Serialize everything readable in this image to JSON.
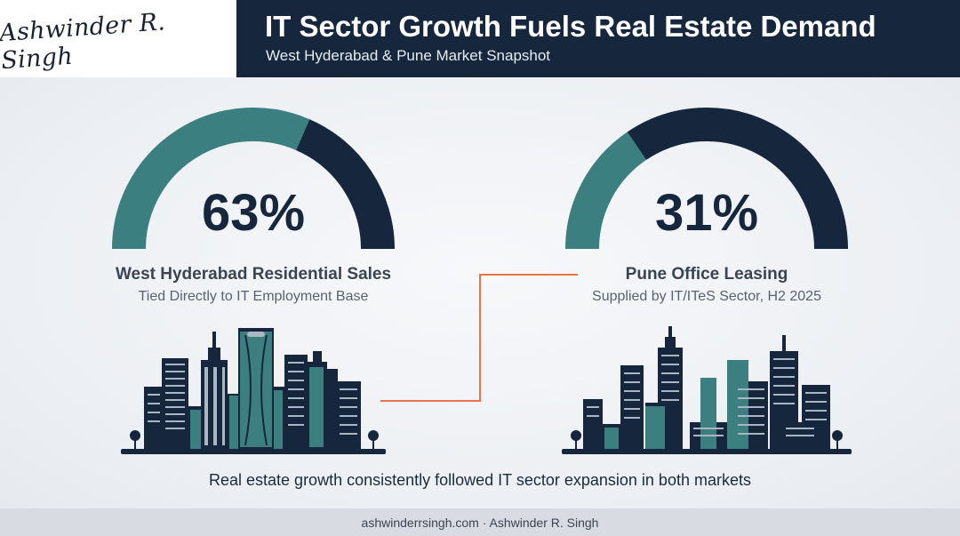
{
  "header": {
    "logo_text": "Ashwinder R. Singh",
    "title": "IT Sector Growth Fuels Real Estate Demand",
    "subtitle": "West Hyderabad & Pune Market Snapshot"
  },
  "metrics": [
    {
      "value_text": "63%",
      "value": 63,
      "label": "West Hyderabad Residential Sales",
      "sublabel": "Tied Directly to IT Employment Base"
    },
    {
      "value_text": "31%",
      "value": 31,
      "label": "Pune Office Leasing",
      "sublabel": "Supplied by IT/ITeS Sector, H2 2025"
    }
  ],
  "caption": "Real estate growth consistently followed IT sector expansion in both markets",
  "footer": "ashwinderrsingh.com · Ashwinder R. Singh",
  "colors": {
    "navy": "#16273d",
    "teal": "#3c7f80",
    "connector": "#e8744a",
    "background": "#eef0f3"
  },
  "icons": [
    "hyderabad-skyline-icon",
    "pune-skyline-icon"
  ]
}
